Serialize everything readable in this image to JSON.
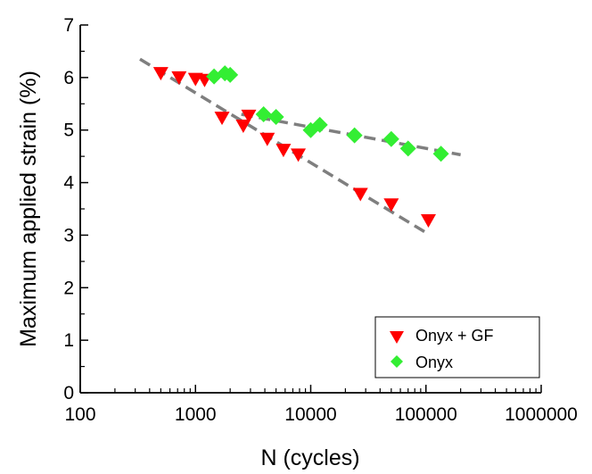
{
  "chart_data": {
    "type": "scatter",
    "title": "",
    "xlabel": "N (cycles)",
    "ylabel": "Maximum applied strain (%)",
    "x_scale": "log",
    "xlim": [
      100,
      1000000
    ],
    "ylim": [
      0,
      7
    ],
    "x_ticks": [
      100,
      1000,
      10000,
      100000,
      1000000
    ],
    "x_tick_labels": [
      "100",
      "1000",
      "10000",
      "100000",
      "1000000"
    ],
    "y_ticks": [
      0,
      1,
      2,
      3,
      4,
      5,
      6,
      7
    ],
    "y_tick_labels": [
      "0",
      "1",
      "2",
      "3",
      "4",
      "5",
      "6",
      "7"
    ],
    "grid": false,
    "legend_position": "bottom-right",
    "series": [
      {
        "name": "Onyx + GF",
        "marker": "triangle-down",
        "color": "#ff0000",
        "points": [
          {
            "x": 500,
            "y": 6.08
          },
          {
            "x": 720,
            "y": 6.0
          },
          {
            "x": 1000,
            "y": 5.97
          },
          {
            "x": 1200,
            "y": 5.95
          },
          {
            "x": 1700,
            "y": 5.23
          },
          {
            "x": 2600,
            "y": 5.08
          },
          {
            "x": 2900,
            "y": 5.27
          },
          {
            "x": 4200,
            "y": 4.83
          },
          {
            "x": 5800,
            "y": 4.62
          },
          {
            "x": 7800,
            "y": 4.53
          },
          {
            "x": 27000,
            "y": 3.78
          },
          {
            "x": 50000,
            "y": 3.58
          },
          {
            "x": 105000,
            "y": 3.28
          }
        ],
        "trend_line": {
          "x": [
            330,
            105000
          ],
          "y": [
            6.35,
            3.02
          ]
        }
      },
      {
        "name": "Onyx",
        "marker": "diamond",
        "color": "#33ee33",
        "points": [
          {
            "x": 1450,
            "y": 6.02
          },
          {
            "x": 1800,
            "y": 6.08
          },
          {
            "x": 2000,
            "y": 6.05
          },
          {
            "x": 3900,
            "y": 5.3
          },
          {
            "x": 5000,
            "y": 5.25
          },
          {
            "x": 10000,
            "y": 5.0
          },
          {
            "x": 12000,
            "y": 5.1
          },
          {
            "x": 24000,
            "y": 4.9
          },
          {
            "x": 50000,
            "y": 4.83
          },
          {
            "x": 70000,
            "y": 4.65
          },
          {
            "x": 135000,
            "y": 4.55
          }
        ],
        "trend_line": {
          "x": [
            2500,
            200000
          ],
          "y": [
            5.3,
            4.53
          ]
        }
      }
    ]
  }
}
